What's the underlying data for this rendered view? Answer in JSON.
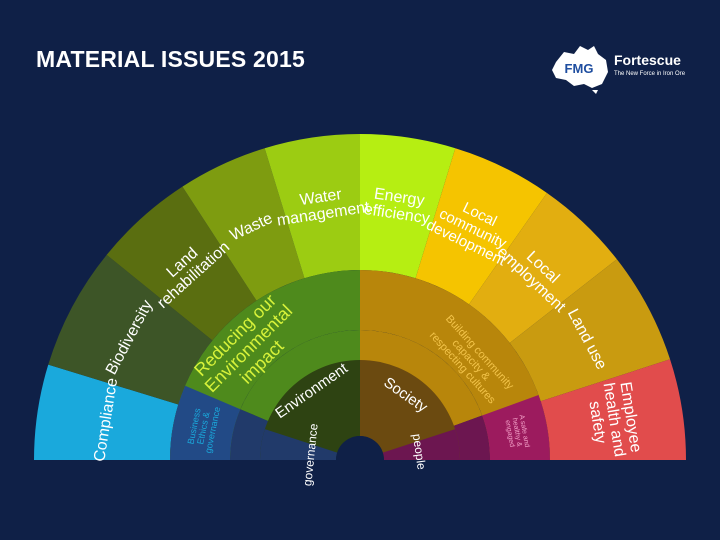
{
  "title": "MATERIAL ISSUES 2015",
  "logo": {
    "mark": "FMG",
    "name": "Fortescue",
    "tagline": "The New Force in Iron Ore",
    "icon": "australia-map-icon"
  },
  "wheel": {
    "inner": [
      {
        "label": "Environment",
        "color": "#2e4312",
        "text_color": "#ffffff"
      },
      {
        "label": "Society",
        "color": "#6b4a10",
        "text_color": "#ffffff"
      }
    ],
    "middle": [
      {
        "label": "governance",
        "color": "#213a6a",
        "text_color": "#ffffff"
      },
      {
        "label": "Reducing our Environmental impact",
        "color": "#4e8a1c",
        "text_color": "#d7f23a"
      },
      {
        "label": "Building community capacity & respecting cultures",
        "color": "#b8860b",
        "text_color": "#f3c44a"
      },
      {
        "label": "people",
        "color": "#6c1650",
        "text_color": "#ffffff"
      }
    ],
    "outer": [
      {
        "label": "Compliance",
        "color": "#1aa9dc",
        "text_color": "#ffffff"
      },
      {
        "label": "Business Ethics & governance",
        "color": "#224a86",
        "text_color": "#1aa9dc"
      },
      {
        "label": "Biodiversity",
        "color": "#3d5527",
        "text_color": "#ffffff"
      },
      {
        "label": "Land rehabilitation",
        "color": "#5a6e10",
        "text_color": "#ffffff"
      },
      {
        "label": "Waste",
        "color": "#7e9c10",
        "text_color": "#ffffff"
      },
      {
        "label": "Water management",
        "color": "#9ccc12",
        "text_color": "#ffffff"
      },
      {
        "label": "Energy efficiency",
        "color": "#b6ee12",
        "text_color": "#ffffff"
      },
      {
        "label": "Local community development",
        "color": "#f5c400",
        "text_color": "#ffffff"
      },
      {
        "label": "Local employment",
        "color": "#e2ae10",
        "text_color": "#ffffff"
      },
      {
        "label": "Land use",
        "color": "#c99b10",
        "text_color": "#ffffff"
      },
      {
        "label": "A safe and healthy & engaged",
        "color": "#9c1b5e",
        "text_color": "#f3a0c8"
      },
      {
        "label": "Employee health and safety",
        "color": "#e14c4c",
        "text_color": "#ffffff"
      }
    ]
  }
}
